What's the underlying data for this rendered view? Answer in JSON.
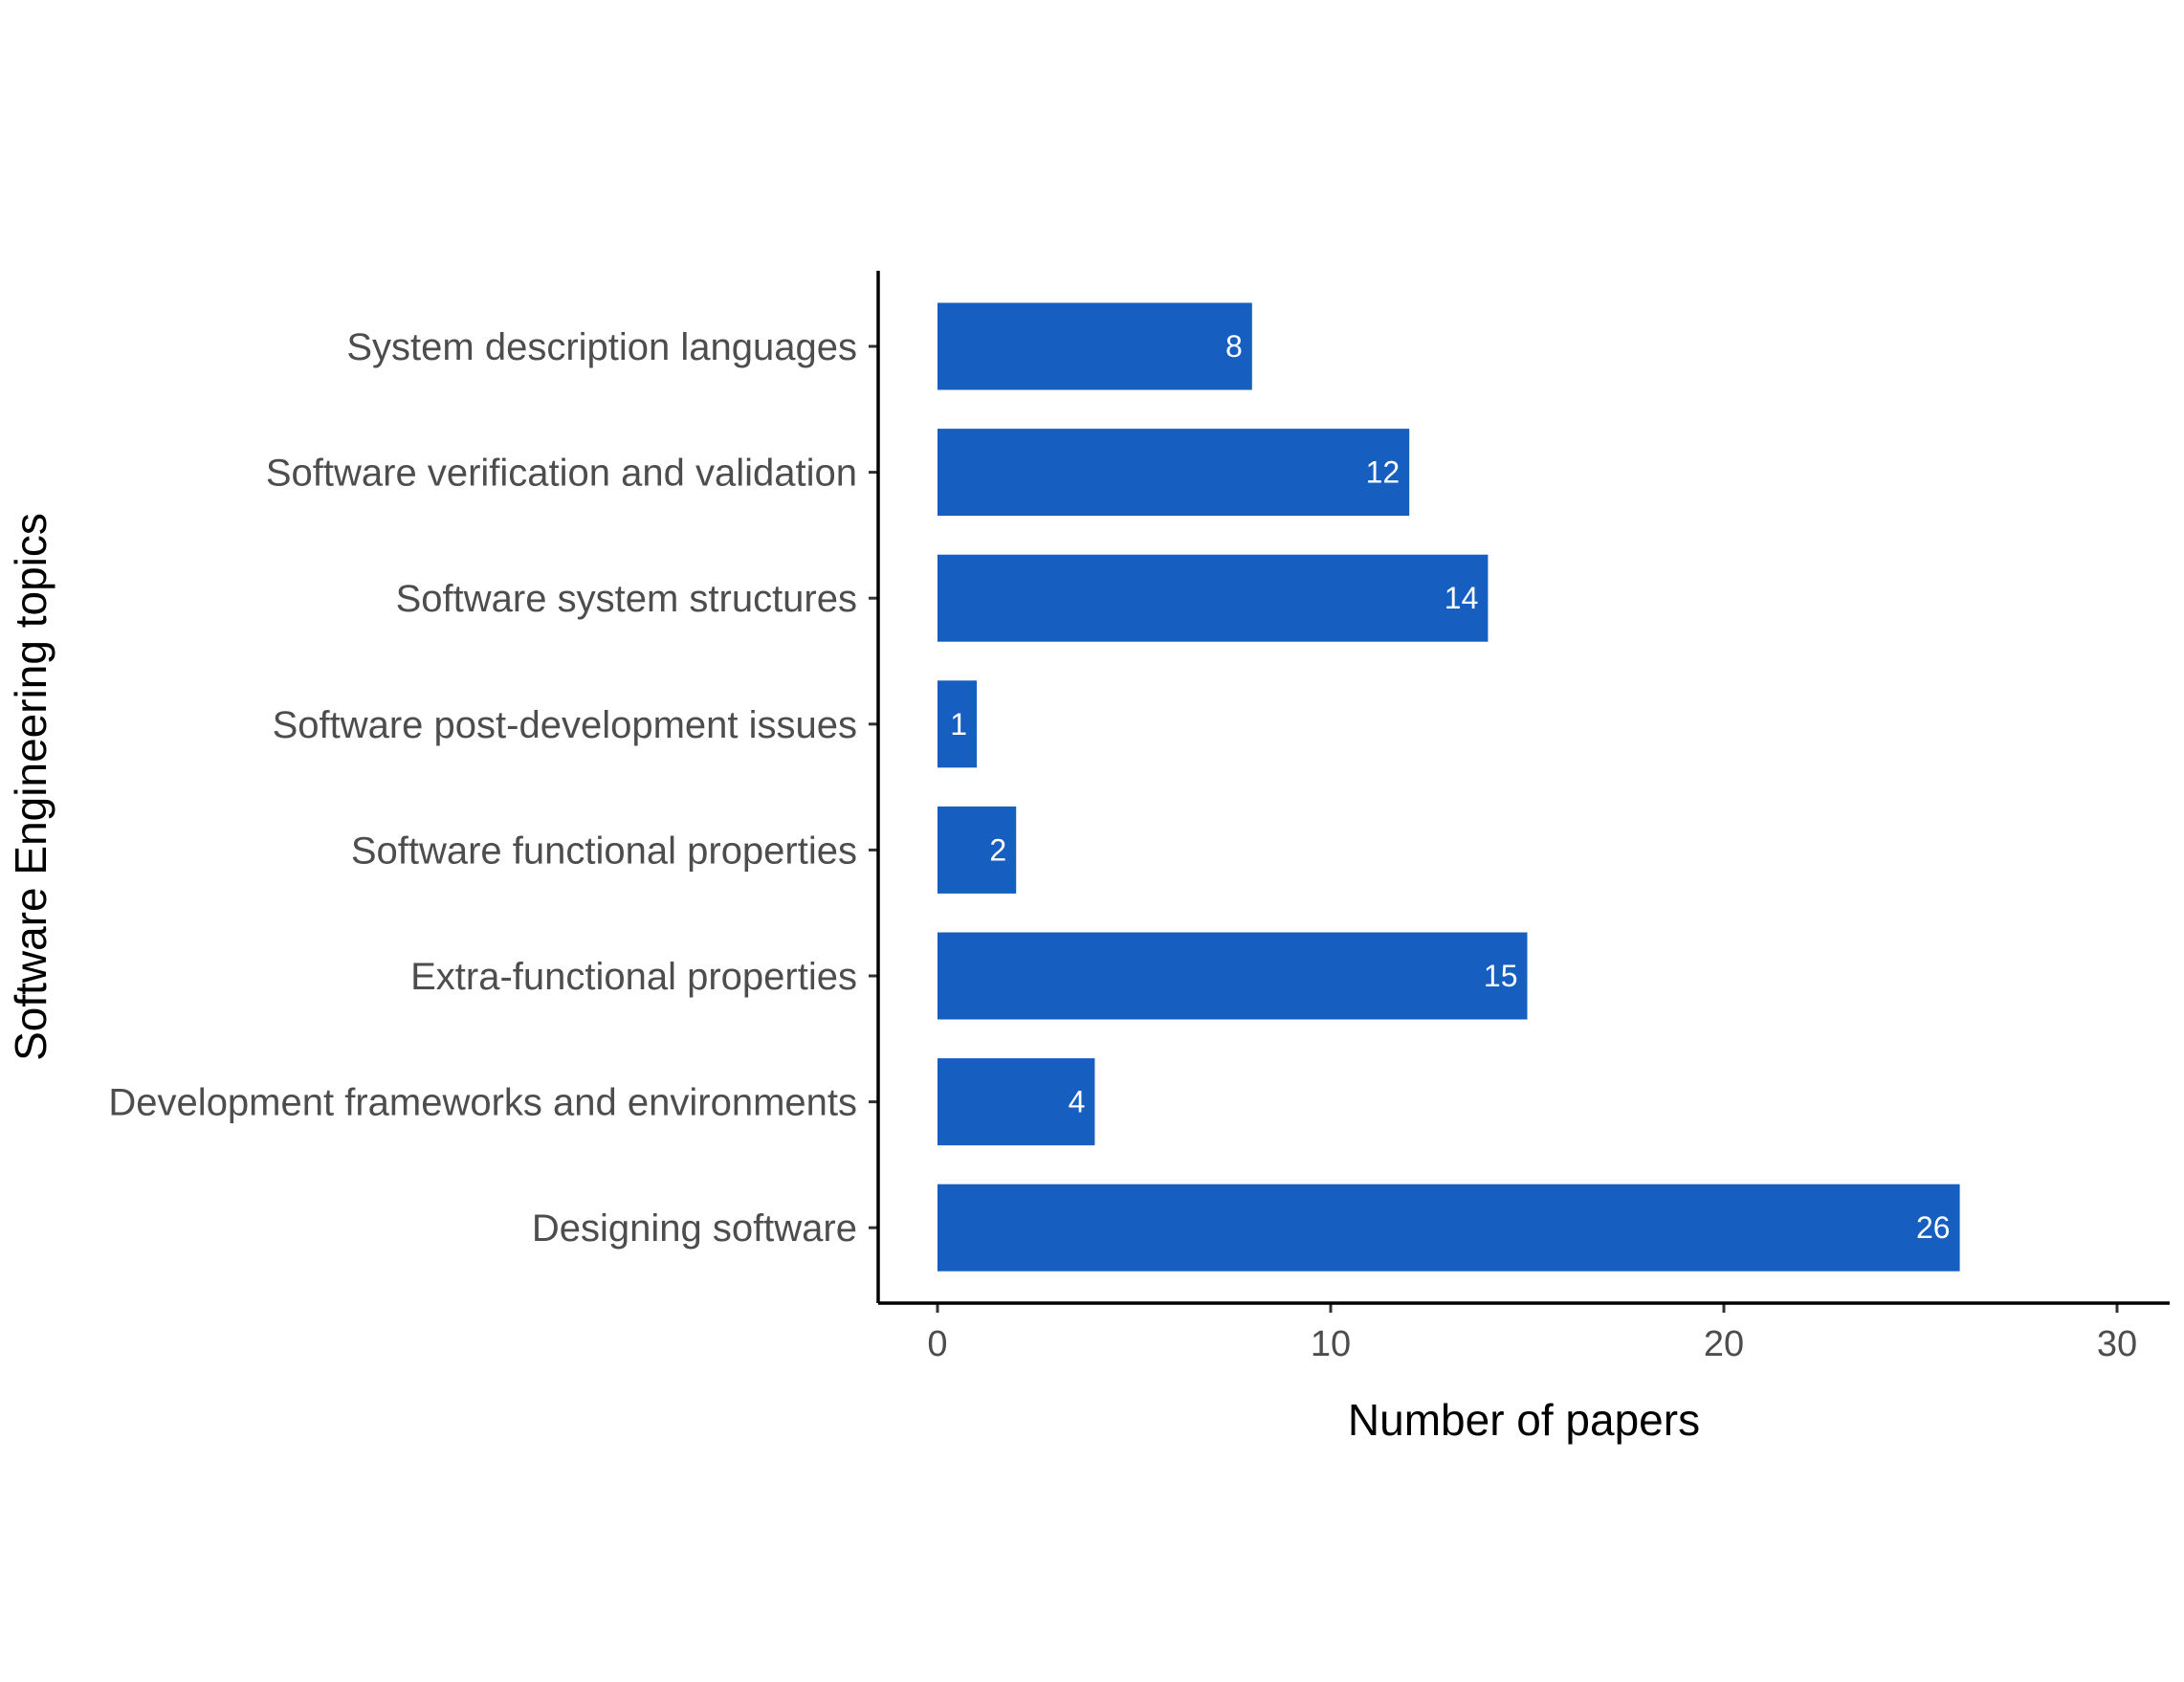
{
  "chart_data": {
    "type": "bar",
    "orientation": "horizontal",
    "categories": [
      "System description languages",
      "Software verification and validation",
      "Software system structures",
      "Software post-development issues",
      "Software functional properties",
      "Extra-functional properties",
      "Development frameworks and environments",
      "Designing software"
    ],
    "values": [
      8,
      12,
      14,
      1,
      2,
      15,
      4,
      26
    ],
    "xlabel": "Number of papers",
    "ylabel": "Software Engineering topics",
    "xlim": [
      0,
      30
    ],
    "xticks": [
      0,
      10,
      20,
      30
    ],
    "grid": false,
    "bar_color": "#175EC1",
    "data_labels": true
  }
}
